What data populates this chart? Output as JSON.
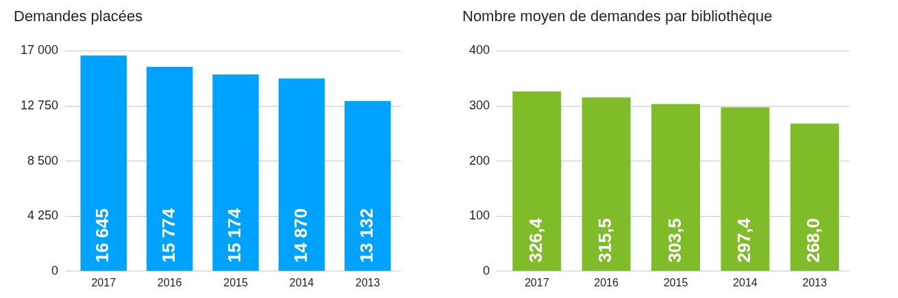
{
  "chart_data": [
    {
      "type": "bar",
      "title": "Demandes placées",
      "categories": [
        "2017",
        "2016",
        "2015",
        "2014",
        "2013"
      ],
      "values": [
        16645,
        15774,
        15174,
        14870,
        13132
      ],
      "value_labels": [
        "16 645",
        "15 774",
        "15 174",
        "14 870",
        "13 132"
      ],
      "color": "#00a2ff",
      "ylim": [
        0,
        17000
      ],
      "yticks": [
        0,
        {
          "value": 4250,
          "label": "4 250"
        },
        {
          "value": 8500,
          "label": "8 500"
        },
        {
          "value": 12750,
          "label": "12 750"
        },
        {
          "value": 17000,
          "label": "17 000"
        }
      ],
      "grid": "y"
    },
    {
      "type": "bar",
      "title": "Nombre moyen de demandes par bibliothèque",
      "categories": [
        "2017",
        "2016",
        "2015",
        "2014",
        "2013"
      ],
      "values": [
        326.4,
        315.5,
        303.5,
        297.4,
        268.0
      ],
      "value_labels": [
        "326,4",
        "315,5",
        "303,5",
        "297,4",
        "268,0"
      ],
      "color": "#80bb2a",
      "ylim": [
        0,
        400
      ],
      "yticks": [
        0,
        100,
        200,
        300,
        400
      ],
      "grid": "y"
    }
  ]
}
